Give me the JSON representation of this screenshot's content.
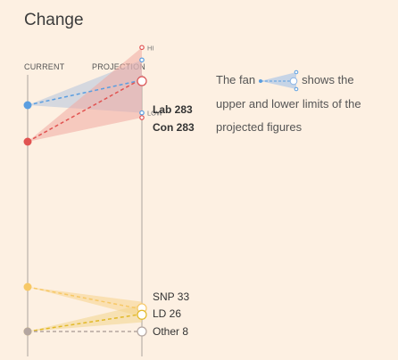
{
  "title": "Change",
  "chart_data": {
    "type": "slope",
    "columns": [
      "CURRENT",
      "PROJECTION"
    ],
    "fan_marks": {
      "upper": "HI",
      "lower": "LOW"
    },
    "series": [
      {
        "name": "Lab",
        "label": "Lab 283",
        "color": "#5b9ee0",
        "fan_color": "#b5c5dc",
        "current": 258,
        "projection": 283,
        "hi": 305,
        "low": 250,
        "bold": true,
        "show_hilo": true
      },
      {
        "name": "Con",
        "label": "Con 283",
        "color": "#e15351",
        "fan_color": "#f0a9a1",
        "current": 220,
        "projection": 283,
        "hi": 318,
        "low": 245,
        "bold": true,
        "show_hilo": true
      },
      {
        "name": "SNP",
        "label": "SNP 33",
        "color": "#f7c866",
        "fan_color": "#f7d48b",
        "current": 56,
        "projection": 33,
        "hi": 40,
        "low": 24,
        "bold": false,
        "show_hilo": false
      },
      {
        "name": "LD",
        "label": "LD 26",
        "color": "#e2b928",
        "fan_color": "#f2d58c",
        "current": 8,
        "projection": 26,
        "hi": 37,
        "low": 18,
        "bold": false,
        "show_hilo": false
      },
      {
        "name": "Other",
        "label": "Other 8",
        "color": "#b4a6a0",
        "fan_color": "#d9cdc6",
        "current": 8,
        "projection": 8,
        "hi": 8,
        "low": 8,
        "bold": false,
        "show_hilo": false
      }
    ]
  },
  "note": {
    "before": "The fan",
    "after": "shows the",
    "line2": "upper and lower limits of the",
    "line3": "projected figures"
  }
}
